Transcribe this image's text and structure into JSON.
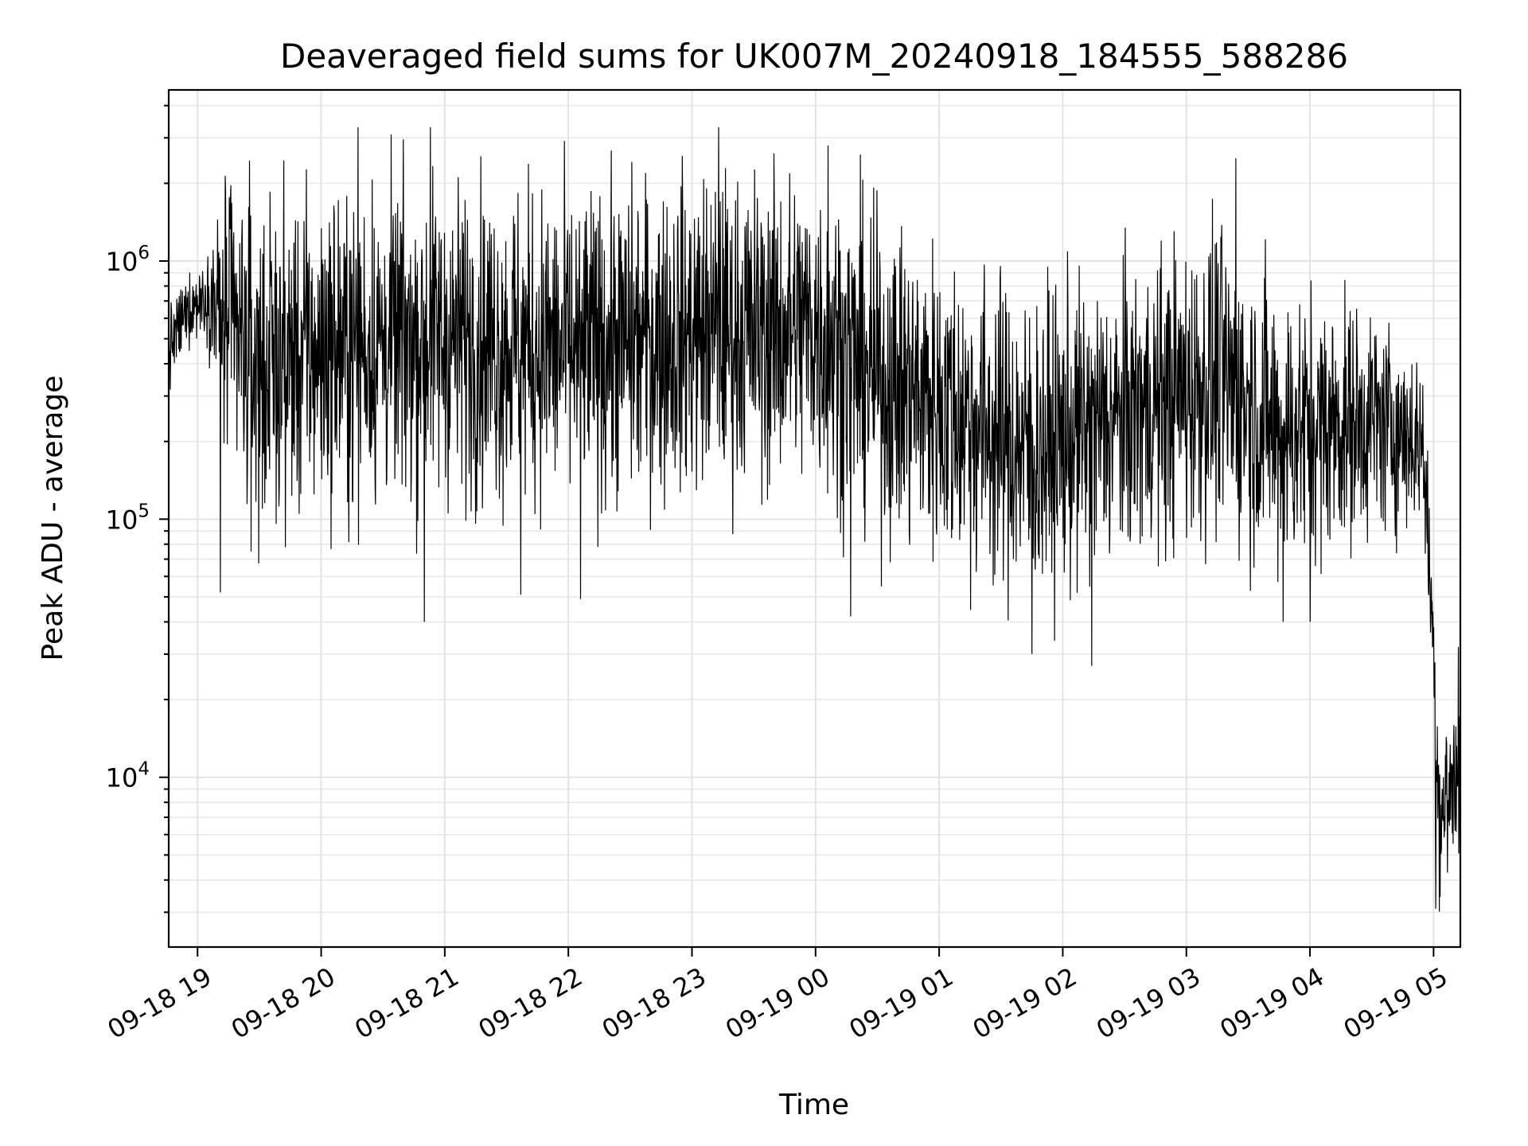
{
  "chart_data": {
    "type": "line",
    "title": "Deaveraged field sums for UK007M_20240918_184555_588286",
    "xlabel": "Time",
    "ylabel": "Peak ADU - average",
    "yscale": "log",
    "ylim": [
      2200,
      4600000
    ],
    "xlim": [
      "2024-09-18 18:46",
      "2024-09-19 05:13"
    ],
    "grid": true,
    "x_ticks": [
      "09-18 19",
      "09-18 20",
      "09-18 21",
      "09-18 22",
      "09-18 23",
      "09-19 00",
      "09-19 01",
      "09-19 02",
      "09-19 03",
      "09-19 04",
      "09-19 05"
    ],
    "x_tick_times": [
      "2024-09-18 19:00",
      "2024-09-18 20:00",
      "2024-09-18 21:00",
      "2024-09-18 22:00",
      "2024-09-18 23:00",
      "2024-09-19 00:00",
      "2024-09-19 01:00",
      "2024-09-19 02:00",
      "2024-09-19 03:00",
      "2024-09-19 04:00",
      "2024-09-19 05:00"
    ],
    "y_ticks": [
      {
        "base": "10",
        "exp": "4",
        "value": 10000
      },
      {
        "base": "10",
        "exp": "5",
        "value": 100000
      },
      {
        "base": "10",
        "exp": "6",
        "value": 1000000
      }
    ],
    "series": [
      {
        "color": "#000000",
        "profile": [
          {
            "t": "2024-09-18 18:46",
            "median": 450000,
            "spread": 0.15
          },
          {
            "t": "2024-09-18 18:55",
            "median": 650000,
            "spread": 0.12
          },
          {
            "t": "2024-09-18 19:05",
            "median": 750000,
            "spread": 0.15
          },
          {
            "t": "2024-09-18 19:15",
            "median": 550000,
            "spread": 0.55
          },
          {
            "t": "2024-09-18 19:30",
            "median": 380000,
            "spread": 0.55
          },
          {
            "t": "2024-09-18 20:00",
            "median": 450000,
            "spread": 0.55
          },
          {
            "t": "2024-09-18 21:00",
            "median": 500000,
            "spread": 0.55
          },
          {
            "t": "2024-09-18 22:00",
            "median": 450000,
            "spread": 0.55
          },
          {
            "t": "2024-09-18 23:00",
            "median": 520000,
            "spread": 0.55
          },
          {
            "t": "2024-09-19 00:00",
            "median": 550000,
            "spread": 0.55
          },
          {
            "t": "2024-09-19 00:30",
            "median": 350000,
            "spread": 0.55
          },
          {
            "t": "2024-09-19 01:00",
            "median": 280000,
            "spread": 0.55
          },
          {
            "t": "2024-09-19 01:45",
            "median": 180000,
            "spread": 0.55
          },
          {
            "t": "2024-09-19 02:30",
            "median": 250000,
            "spread": 0.5
          },
          {
            "t": "2024-09-19 03:15",
            "median": 350000,
            "spread": 0.55
          },
          {
            "t": "2024-09-19 03:45",
            "median": 220000,
            "spread": 0.5
          },
          {
            "t": "2024-09-19 04:30",
            "median": 240000,
            "spread": 0.4
          },
          {
            "t": "2024-09-19 04:55",
            "median": 200000,
            "spread": 0.3
          },
          {
            "t": "2024-09-19 05:00",
            "median": 30000,
            "spread": 0.25
          },
          {
            "t": "2024-09-19 05:03",
            "median": 7000,
            "spread": 0.35
          },
          {
            "t": "2024-09-19 05:13",
            "median": 11000,
            "spread": 0.35
          }
        ],
        "spikes": [
          {
            "t": "2024-09-18 19:11",
            "value": 52000
          },
          {
            "t": "2024-09-18 19:26",
            "value": 75000
          },
          {
            "t": "2024-09-18 20:18",
            "value": 3300000
          },
          {
            "t": "2024-09-18 20:50",
            "value": 40000
          },
          {
            "t": "2024-09-18 20:53",
            "value": 3300000
          },
          {
            "t": "2024-09-18 21:37",
            "value": 51000
          },
          {
            "t": "2024-09-18 22:06",
            "value": 49000
          },
          {
            "t": "2024-09-18 23:13",
            "value": 3300000
          },
          {
            "t": "2024-09-19 00:06",
            "value": 2800000
          },
          {
            "t": "2024-09-19 00:17",
            "value": 42000
          },
          {
            "t": "2024-09-19 01:45",
            "value": 30000
          },
          {
            "t": "2024-09-19 02:14",
            "value": 27000
          },
          {
            "t": "2024-09-19 03:24",
            "value": 2500000
          },
          {
            "t": "2024-09-19 03:47",
            "value": 40000
          },
          {
            "t": "2024-09-19 04:00",
            "value": 40000
          },
          {
            "t": "2024-09-19 05:01",
            "value": 3100
          },
          {
            "t": "2024-09-19 05:12",
            "value": 32000
          }
        ]
      }
    ]
  }
}
